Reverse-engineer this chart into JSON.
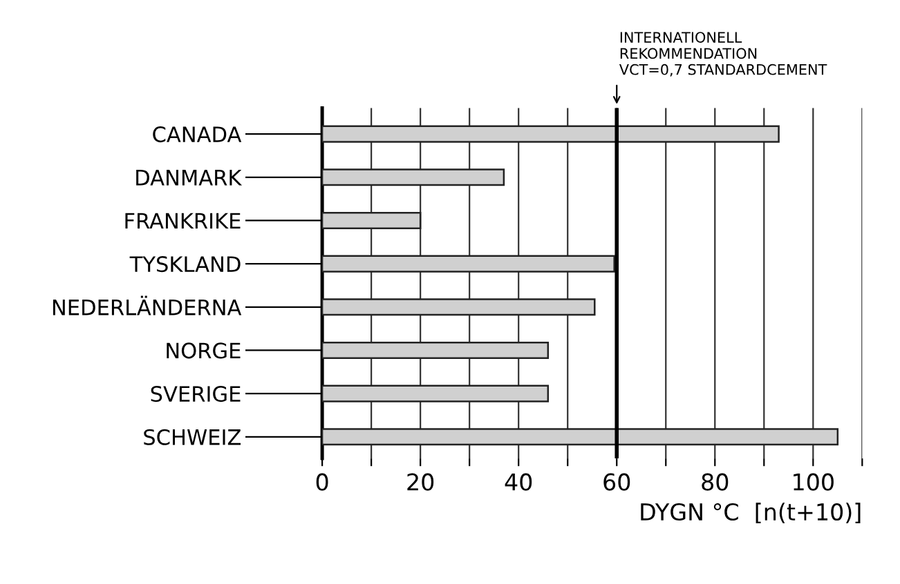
{
  "chart_data": {
    "type": "bar",
    "orientation": "horizontal",
    "categories": [
      "CANADA",
      "DANMARK",
      "FRANKRIKE",
      "TYSKLAND",
      "NEDERLÄNDERNA",
      "NORGE",
      "SVERIGE",
      "SCHWEIZ"
    ],
    "values": [
      93,
      37,
      20,
      59.5,
      55.5,
      46,
      46,
      105
    ],
    "color": "#d0d0d0",
    "xlabel": "DYGN °C  [n(t+10)]",
    "xlim": [
      0,
      110
    ],
    "xticks": [
      0,
      {
        "value": 10,
        "label": null
      },
      20,
      {
        "value": 30,
        "label": null
      },
      40,
      {
        "value": 50,
        "label": null
      },
      60,
      {
        "value": 70,
        "label": null
      },
      80,
      {
        "value": 90,
        "label": null
      },
      100,
      {
        "value": 110,
        "label": null
      }
    ],
    "grid": "x",
    "ref_lines": [
      {
        "axis": "x",
        "value": 60,
        "color": "#000000"
      }
    ],
    "annotations": [
      "INTERNATIONELL\nREKOMMENDATION\nVCT=0,7 STANDARDCEMENT"
    ]
  }
}
